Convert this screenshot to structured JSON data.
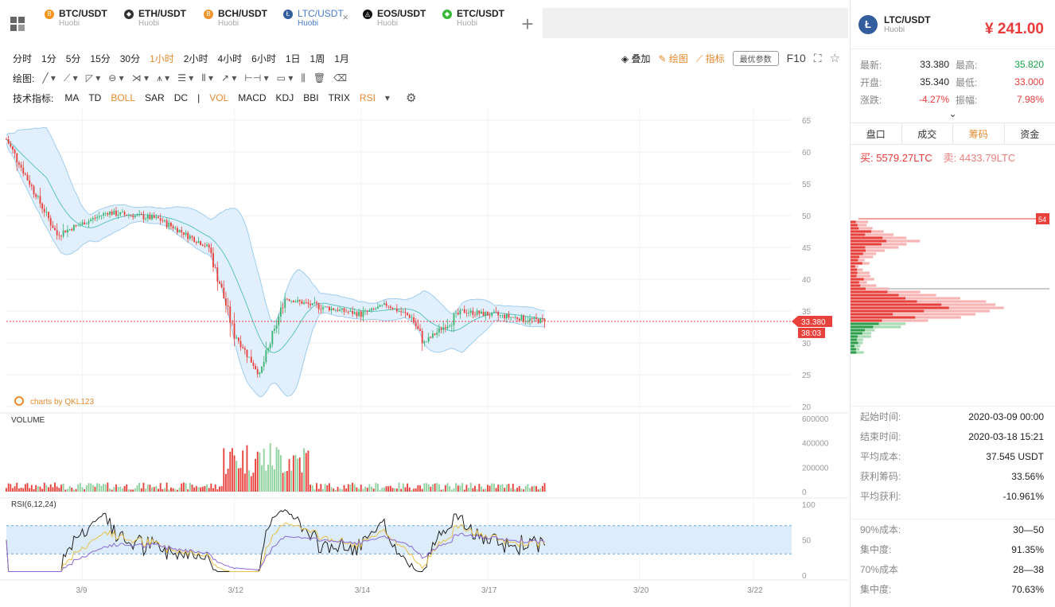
{
  "tabs": [
    {
      "pair": "BTC/USDT",
      "exchange": "Huobi",
      "icon": "bitcoin-icon",
      "color": "#f7931a",
      "glyph": "B",
      "active": false
    },
    {
      "pair": "ETH/USDT",
      "exchange": "Huobi",
      "icon": "ethereum-icon",
      "color": "#333333",
      "glyph": "◆",
      "active": false
    },
    {
      "pair": "BCH/USDT",
      "exchange": "Huobi",
      "icon": "bitcoin-cash-icon",
      "color": "#f0932b",
      "glyph": "B",
      "active": false
    },
    {
      "pair": "LTC/USDT",
      "exchange": "Huobi",
      "icon": "litecoin-icon",
      "color": "#345d9d",
      "glyph": "Ł",
      "active": true
    },
    {
      "pair": "EOS/USDT",
      "exchange": "Huobi",
      "icon": "eos-icon",
      "color": "#111111",
      "glyph": "◬",
      "active": false
    },
    {
      "pair": "ETC/USDT",
      "exchange": "Huobi",
      "icon": "ethereum-classic-icon",
      "color": "#3ab83a",
      "glyph": "◆",
      "active": false
    }
  ],
  "periods": [
    "分时",
    "1分",
    "5分",
    "15分",
    "30分",
    "1小时",
    "2小时",
    "4小时",
    "6小时",
    "1日",
    "1周",
    "1月"
  ],
  "active_period": "1小时",
  "toolbar_right": {
    "overlay": "叠加",
    "draw": "绘图",
    "indicator": "指标",
    "best_params": "最优参数",
    "f10": "F10"
  },
  "draw_label": "绘图:",
  "indicators_label": "技术指标:",
  "indicators": [
    {
      "name": "MA",
      "active": false
    },
    {
      "name": "TD",
      "active": false
    },
    {
      "name": "BOLL",
      "active": true
    },
    {
      "name": "SAR",
      "active": false
    },
    {
      "name": "DC",
      "active": false
    },
    {
      "name": "|",
      "active": false
    },
    {
      "name": "VOL",
      "active": true
    },
    {
      "name": "MACD",
      "active": false
    },
    {
      "name": "KDJ",
      "active": false
    },
    {
      "name": "BBI",
      "active": false
    },
    {
      "name": "TRIX",
      "active": false
    },
    {
      "name": "RSI",
      "active": true
    }
  ],
  "chart": {
    "watermark": "charts by QKL123",
    "volume_label": "VOLUME",
    "rsi_label": "RSI(6,12,24)",
    "price_ticks": [
      65,
      60,
      55,
      50,
      45,
      40,
      35,
      30,
      25,
      20
    ],
    "volume_ticks": [
      "600000",
      "400000",
      "200000",
      "0"
    ],
    "rsi_ticks": [
      "100",
      "50",
      "0"
    ],
    "x_labels": [
      "3/9",
      "3/12",
      "3/14",
      "3/17",
      "3/20",
      "3/22"
    ],
    "last_price_tag": "33.380",
    "countdown_tag": "38:03",
    "current_price": 33.38
  },
  "chart_data": {
    "type": "candlestick",
    "x_range": [
      "2020-03-08 00:00",
      "2020-03-23 12:00"
    ],
    "price_anchors": [
      {
        "t": "2020-03-08 00:00",
        "close": 62.0
      },
      {
        "t": "2020-03-09 00:00",
        "close": 47.0
      },
      {
        "t": "2020-03-10 00:00",
        "close": 50.5
      },
      {
        "t": "2020-03-11 00:00",
        "close": 49.5
      },
      {
        "t": "2020-03-12 00:00",
        "close": 45.0
      },
      {
        "t": "2020-03-12 12:00",
        "close": 31.5
      },
      {
        "t": "2020-03-13 00:00",
        "close": 25.0
      },
      {
        "t": "2020-03-13 12:00",
        "close": 37.0
      },
      {
        "t": "2020-03-14 00:00",
        "close": 36.0
      },
      {
        "t": "2020-03-15 00:00",
        "close": 34.5
      },
      {
        "t": "2020-03-15 12:00",
        "close": 36.0
      },
      {
        "t": "2020-03-16 00:00",
        "close": 34.0
      },
      {
        "t": "2020-03-16 06:00",
        "close": 30.0
      },
      {
        "t": "2020-03-17 00:00",
        "close": 35.0
      },
      {
        "t": "2020-03-18 15:00",
        "close": 33.38
      }
    ],
    "ylim": [
      20,
      65
    ],
    "volume_ylim": [
      0,
      600000
    ],
    "rsi_ylim": [
      0,
      100
    ],
    "rsi_band": [
      30,
      70
    ]
  },
  "panel": {
    "pair": "LTC/USDT",
    "exchange": "Huobi",
    "price": "¥ 241.00",
    "stats": [
      {
        "l1": "最新:",
        "v1": "33.380",
        "l2": "最高:",
        "v2": "35.820",
        "c2": "green"
      },
      {
        "l1": "开盘:",
        "v1": "35.340",
        "l2": "最低:",
        "v2": "33.000",
        "c2": "red"
      },
      {
        "l1": "涨跌:",
        "v1": "-4.27%",
        "l2": "振幅:",
        "v2": "7.98%",
        "c1": "red",
        "c2": "red"
      }
    ],
    "tabs": [
      {
        "label": "盘口",
        "active": false
      },
      {
        "label": "成交",
        "active": false
      },
      {
        "label": "筹码",
        "active": true
      },
      {
        "label": "资金",
        "active": false
      }
    ],
    "buy": "买: 5579.27LTC",
    "sell": "卖: 4433.79LTC",
    "dist_tag": "54",
    "info1": [
      {
        "k": "起始时间:",
        "v": "2020-03-09 00:00",
        "c": ""
      },
      {
        "k": "结束时间:",
        "v": "2020-03-18 15:21",
        "c": ""
      },
      {
        "k": "平均成本:",
        "v": "37.545 USDT",
        "c": "red"
      },
      {
        "k": "获利筹码:",
        "v": "33.56%",
        "c": ""
      },
      {
        "k": "平均获利:",
        "v": "-10.961%",
        "c": "red"
      }
    ],
    "info2": [
      {
        "k": "90%成本:",
        "v": "30—50",
        "c": ""
      },
      {
        "k": "集中度:",
        "v": "91.35%",
        "c": ""
      },
      {
        "k": "70%成本",
        "v": "28—38",
        "c": ""
      },
      {
        "k": "集中度:",
        "v": "70.63%",
        "c": ""
      }
    ]
  }
}
